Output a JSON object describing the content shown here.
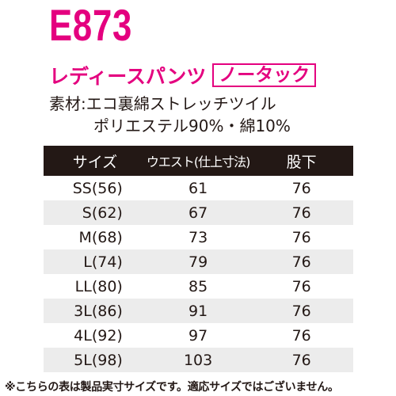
{
  "product_code": "E873",
  "title": "レディースパンツ",
  "badge": "ノータック",
  "material_line1": "素材:エコ裏綿ストレッチツイル",
  "material_line2": "ポリエステル90%・綿10%",
  "table": {
    "headers": [
      "サイズ",
      "ウエスト(仕上寸法)",
      "股下"
    ],
    "rows": [
      {
        "size": "SS(56)",
        "waist": "61",
        "inseam": "76"
      },
      {
        "size": "S(62)",
        "waist": "67",
        "inseam": "76"
      },
      {
        "size": "M(68)",
        "waist": "73",
        "inseam": "76"
      },
      {
        "size": "L(74)",
        "waist": "79",
        "inseam": "76"
      },
      {
        "size": "LL(80)",
        "waist": "85",
        "inseam": "76"
      },
      {
        "size": "3L(86)",
        "waist": "91",
        "inseam": "76"
      },
      {
        "size": "4L(92)",
        "waist": "97",
        "inseam": "76"
      },
      {
        "size": "5L(98)",
        "waist": "103",
        "inseam": "76"
      }
    ]
  },
  "footnote": "※こちらの表は製品実寸サイズです。適応サイズではございません。",
  "colors": {
    "accent": "#e4007f",
    "header_bg": "#231815",
    "stripe": "#ececec"
  }
}
